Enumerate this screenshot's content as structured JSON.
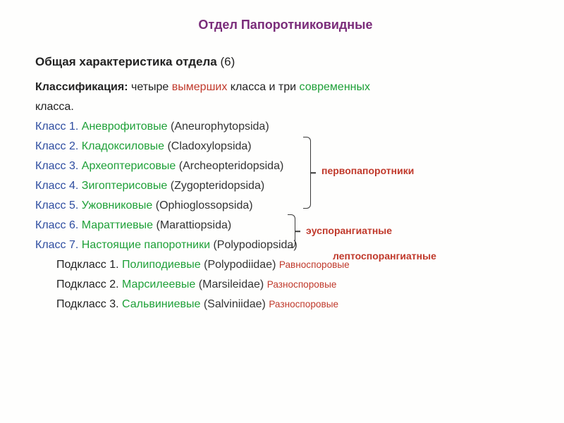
{
  "title": {
    "text": "Отдел Папоротниковидные",
    "color": "#7a2c7a",
    "fontsize": 18
  },
  "subtitle": {
    "bold": "Общая характеристика отдела",
    "count": "(6)",
    "fontsize": 17
  },
  "intro": {
    "bold": "Классификация:",
    "t1": " четыре ",
    "red1": "вымерших",
    "t2": " класса и три ",
    "green1": "современных",
    "t3": "класса.",
    "fontsize": 16
  },
  "classes": [
    {
      "pref": "Класс 1.",
      "name": "Аневрофитовые",
      "latin": "(Aneurophytopsida)"
    },
    {
      "pref": "Класс 2.",
      "name": "Кладоксиловые",
      "latin": "(Cladoxylopsida)"
    },
    {
      "pref": "Класс 3.",
      "name": "Археоптерисовые",
      "latin": "(Archeopteridopsida)"
    },
    {
      "pref": "Класс 4.",
      "name": "Зигоптерисовые",
      "latin": "(Zygopteridopsida)"
    },
    {
      "pref": "Класс 5.",
      "name": "Ужовниковые",
      "latin": "(Ophioglossopsida)"
    },
    {
      "pref": "Класс 6.",
      "name": "Мараттиевые",
      "latin": "(Marattiopsida)"
    },
    {
      "pref": "Класс 7.",
      "name": "Настоящие папоротники",
      "latin": "(Polypodiopsida)"
    }
  ],
  "subclasses": [
    {
      "pref": "Подкласс 1.",
      "name": "Полиподиевые",
      "latin": "(Polypodiidae)",
      "spore": "Равноспоровые"
    },
    {
      "pref": "Подкласс 2.",
      "name": "Марсилеевые",
      "latin": "(Marsileidae)",
      "spore": "Разноспоровые"
    },
    {
      "pref": "Подкласс 3.",
      "name": "Сальвиниевые",
      "latin": "(Salviniidae)",
      "spore": "Разноспоровые"
    }
  ],
  "labels": {
    "l1": "первопапоротники",
    "l2": "эуспорангиатные",
    "l3": "лептоспорангиатные"
  },
  "style": {
    "line_fontsize": 16,
    "label_fontsize": 14,
    "blue": "#2e4da0",
    "green": "#1ea038",
    "red": "#c0392b",
    "dark": "#222222",
    "title_purple": "#7a2c7a",
    "background": "#fefefd"
  }
}
